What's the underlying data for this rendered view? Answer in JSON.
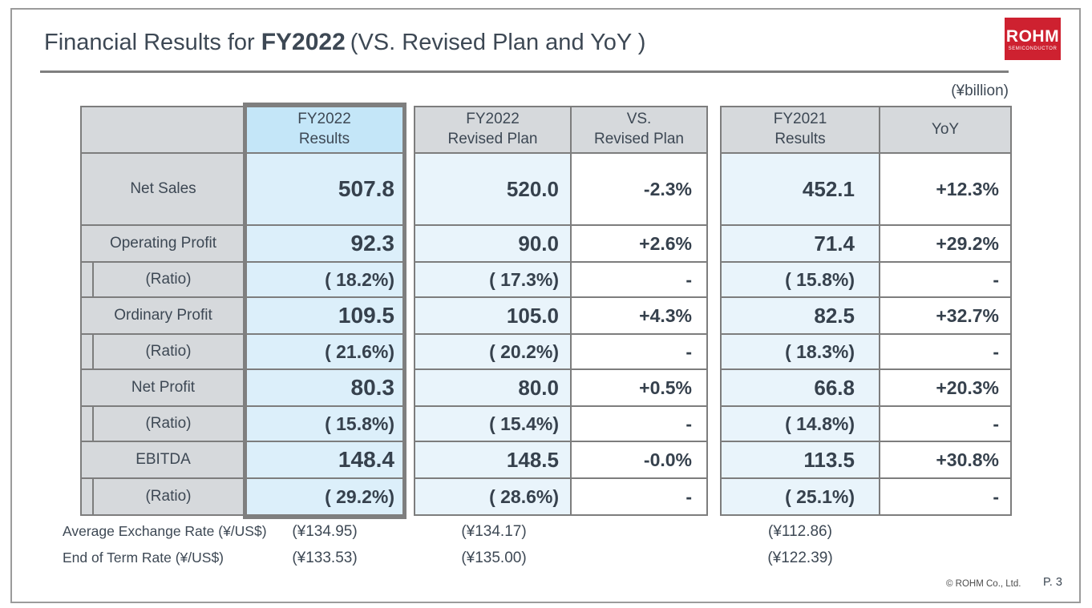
{
  "header": {
    "title_prefix": "Financial Results for",
    "title_year": "FY2022",
    "title_suffix": "(VS. Revised Plan and YoY )",
    "unit_note": "(¥billion)",
    "logo_text": "ROHM",
    "logo_subtext": "SEMICONDUCTOR"
  },
  "colors": {
    "logo_red": "#ce2130",
    "highlight_header_fill": "#c4e6f8",
    "highlight_data_fill": "#dceffa",
    "data_fill": "#e9f4fb",
    "header_fill": "#d6d9dc",
    "border_gray": "#7d7d7d",
    "text_dark": "#36414d"
  },
  "table": {
    "row_labels": [
      "Net Sales",
      "Operating Profit",
      "(Ratio)",
      "Ordinary Profit",
      "(Ratio)",
      "Net Profit",
      "(Ratio)",
      "EBITDA",
      "(Ratio)"
    ],
    "columns": [
      {
        "header_top": "FY2022",
        "header_bottom": "Results",
        "highlighted": true,
        "values": [
          "507.8",
          "92.3",
          "( 18.2%)",
          "109.5",
          "( 21.6%)",
          "80.3",
          "( 15.8%)",
          "148.4",
          "( 29.2%)"
        ]
      },
      {
        "header_top": "FY2022",
        "header_bottom": "Revised Plan",
        "values": [
          "520.0",
          "90.0",
          "( 17.3%)",
          "105.0",
          "( 20.2%)",
          "80.0",
          "( 15.4%)",
          "148.5",
          "( 28.6%)"
        ]
      },
      {
        "header_top": "VS.",
        "header_bottom": "Revised Plan",
        "values": [
          "-2.3%",
          "+2.6%",
          "-",
          "+4.3%",
          "-",
          "+0.5%",
          "-",
          "-0.0%",
          "-"
        ]
      },
      {
        "header_top": "FY2021",
        "header_bottom": "Results",
        "values": [
          "452.1",
          "71.4",
          "( 15.8%)",
          "82.5",
          "( 18.3%)",
          "66.8",
          "( 14.8%)",
          "113.5",
          "( 25.1%)"
        ]
      },
      {
        "header_top": "YoY",
        "values": [
          "+12.3%",
          "+29.2%",
          "-",
          "+32.7%",
          "-",
          "+20.3%",
          "-",
          "+30.8%",
          "-"
        ]
      }
    ]
  },
  "rates": {
    "rows": [
      {
        "label": "Average Exchange Rate (¥/US$)",
        "fy2022_results": "(¥134.95)",
        "fy2022_plan": "(¥134.17)",
        "fy2021_results": "(¥112.86)"
      },
      {
        "label": "End of Term Rate (¥/US$)",
        "fy2022_results": "(¥133.53)",
        "fy2022_plan": "(¥135.00)",
        "fy2021_results": "(¥122.39)"
      }
    ]
  },
  "footer": {
    "copyright": "© ROHM Co., Ltd.",
    "page": "P. 3"
  }
}
